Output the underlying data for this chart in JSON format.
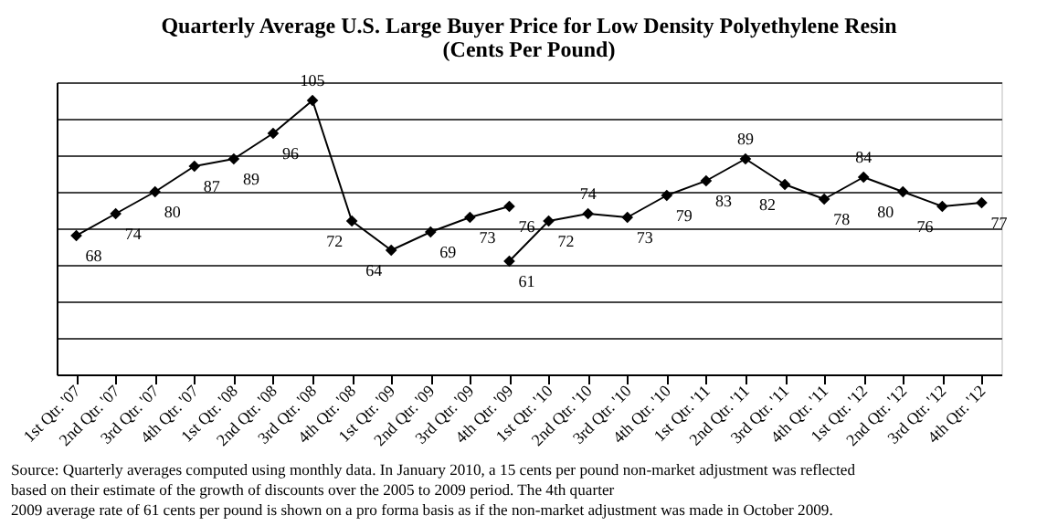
{
  "chart_data": {
    "type": "line",
    "title": "Quarterly Average U.S. Large Buyer Price for Low Density Polyethylene Resin",
    "subtitle": "(Cents Per Pound)",
    "categories": [
      "1st Qtr. '07",
      "2nd Qtr. '07",
      "3rd Qtr. '07",
      "4th Qtr. '07",
      "1st Qtr. '08",
      "2nd Qtr. '08",
      "3rd Qtr. '08",
      "4th Qtr. '08",
      "1st Qtr. '09",
      "2nd Qtr. '09",
      "3rd Qtr. '09",
      "4th Qtr. '09",
      "1st Qtr. '10",
      "2nd Qtr. '10",
      "3rd Qtr. '10",
      "4th Qtr. '10",
      "1st Qtr. '11",
      "2nd Qtr. '11",
      "3rd Qtr. '11",
      "4th Qtr. '11",
      "1st Qtr. '12",
      "2nd Qtr. '12",
      "3rd Qtr. '12",
      "4th Qtr. '12"
    ],
    "series": [
      {
        "color": "#000000",
        "values": [
          68,
          74,
          80,
          87,
          89,
          96,
          105,
          72,
          64,
          69,
          73,
          76,
          null,
          null,
          null,
          null,
          null,
          null,
          null,
          null,
          null,
          null,
          null,
          null
        ]
      },
      {
        "color": "#000000",
        "values": [
          null,
          null,
          null,
          null,
          null,
          null,
          null,
          null,
          null,
          null,
          null,
          61,
          72,
          74,
          73,
          79,
          83,
          89,
          82,
          78,
          84,
          80,
          76,
          77
        ]
      }
    ],
    "ylim": [
      30,
      110
    ],
    "yticks": [
      {
        "value": 30,
        "label": null
      },
      {
        "value": 40,
        "label": null
      },
      {
        "value": 50,
        "label": null
      },
      {
        "value": 60,
        "label": null
      },
      {
        "value": 70,
        "label": null
      },
      {
        "value": 80,
        "label": null
      },
      {
        "value": 90,
        "label": null
      },
      {
        "value": 100,
        "label": null
      },
      {
        "value": 110,
        "label": null
      }
    ],
    "tick_labels": "x",
    "grid": "y",
    "legend": false,
    "marker": "diamond",
    "line_style": "solid",
    "data_labels": true,
    "annotations": [
      "Source:  Quarterly averages computed using monthly data.  In January 2010, a 15 cents per pound non-market adjustment was reflected",
      "based on their estimate of the growth of discounts over the 2005 to 2009 period.  The 4th quarter",
      "2009 average rate of 61 cents per pound is shown on a pro forma basis as if the non-market adjustment was made in October 2009."
    ]
  }
}
